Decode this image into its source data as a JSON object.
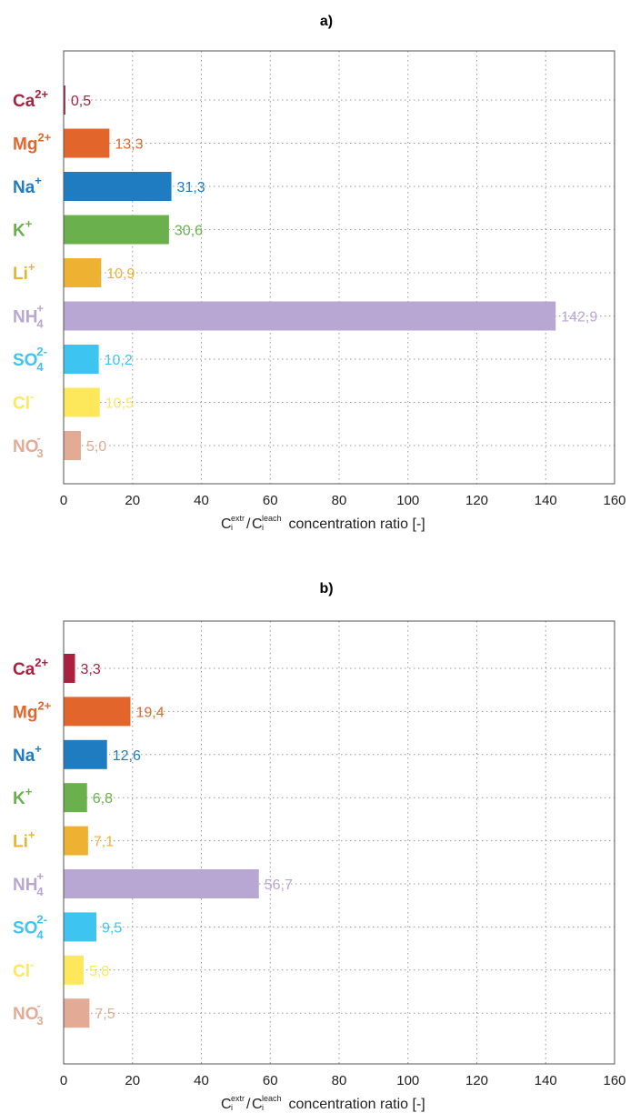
{
  "chart_data": [
    {
      "type": "bar",
      "orientation": "horizontal",
      "panel_label": "a)",
      "categories": [
        {
          "base": "Ca",
          "sup": "2+",
          "sub": "",
          "color": "#a8223f"
        },
        {
          "base": "Mg",
          "sup": "2+",
          "sub": "",
          "color": "#e2662c"
        },
        {
          "base": "Na",
          "sup": "+",
          "sub": "",
          "color": "#1f7cc1"
        },
        {
          "base": "K",
          "sup": "+",
          "sub": "",
          "color": "#6ab04c"
        },
        {
          "base": "Li",
          "sup": "+",
          "sub": "",
          "color": "#eeb232"
        },
        {
          "base": "NH",
          "sup": "+",
          "sub": "4",
          "color": "#b8a7d3"
        },
        {
          "base": "SO",
          "sup": "2-",
          "sub": "4",
          "color": "#3ec4f0"
        },
        {
          "base": "Cl",
          "sup": "-",
          "sub": "",
          "color": "#fde85c"
        },
        {
          "base": "NO",
          "sup": "-",
          "sub": "3",
          "color": "#e3ab96"
        }
      ],
      "values": [
        0.5,
        13.3,
        31.3,
        30.6,
        10.9,
        142.9,
        10.2,
        10.5,
        5.0
      ],
      "data_labels": [
        "0,5",
        "13,3",
        "31,3",
        "30,6",
        "10,9",
        "142,9",
        "10,2",
        "10,5",
        "5,0"
      ],
      "xlim": [
        0,
        160
      ],
      "xticks": [
        0,
        20,
        40,
        60,
        80,
        100,
        120,
        140,
        160
      ],
      "xlabel": {
        "c1": "C",
        "sup1": "extr",
        "sub1": "i",
        "slash": "/",
        "c2": "C",
        "sup2": "leach",
        "sub2": "i",
        "rest": " concentration ratio [-]"
      },
      "grid": true
    },
    {
      "type": "bar",
      "orientation": "horizontal",
      "panel_label": "b)",
      "categories": [
        {
          "base": "Ca",
          "sup": "2+",
          "sub": "",
          "color": "#a8223f"
        },
        {
          "base": "Mg",
          "sup": "2+",
          "sub": "",
          "color": "#e2662c"
        },
        {
          "base": "Na",
          "sup": "+",
          "sub": "",
          "color": "#1f7cc1"
        },
        {
          "base": "K",
          "sup": "+",
          "sub": "",
          "color": "#6ab04c"
        },
        {
          "base": "Li",
          "sup": "+",
          "sub": "",
          "color": "#eeb232"
        },
        {
          "base": "NH",
          "sup": "+",
          "sub": "4",
          "color": "#b8a7d3"
        },
        {
          "base": "SO",
          "sup": "2-",
          "sub": "4",
          "color": "#3ec4f0"
        },
        {
          "base": "Cl",
          "sup": "-",
          "sub": "",
          "color": "#fde85c"
        },
        {
          "base": "NO",
          "sup": "-",
          "sub": "3",
          "color": "#e3ab96"
        }
      ],
      "values": [
        3.3,
        19.4,
        12.6,
        6.8,
        7.1,
        56.7,
        9.5,
        5.8,
        7.5
      ],
      "data_labels": [
        "3,3",
        "19,4",
        "12,6",
        "6,8",
        "7,1",
        "56,7",
        "9,5",
        "5,8",
        "7,5"
      ],
      "xlim": [
        0,
        160
      ],
      "xticks": [
        0,
        20,
        40,
        60,
        80,
        100,
        120,
        140,
        160
      ],
      "xlabel": {
        "c1": "C",
        "sup1": "extr",
        "sub1": "i",
        "slash": "/",
        "c2": "C",
        "sup2": "leach",
        "sub2": "i",
        "rest": " concentration ratio [-]"
      },
      "grid": true
    }
  ]
}
